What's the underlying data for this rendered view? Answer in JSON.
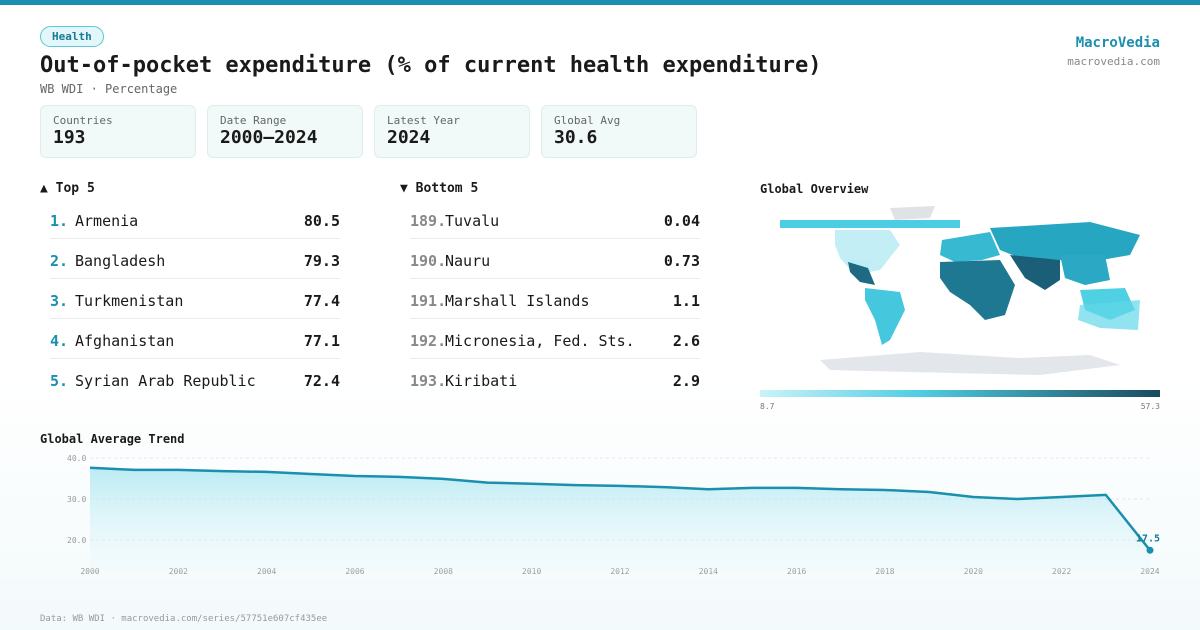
{
  "header": {
    "tag": "Health",
    "title": "Out-of-pocket expenditure (% of current health expenditure)",
    "subtitle": "WB WDI · Percentage",
    "brand": "MacroVedia",
    "site": "macrovedia.com"
  },
  "stats": [
    {
      "label": "Countries",
      "value": 193
    },
    {
      "label": "Date Range",
      "value": "2000–2024"
    },
    {
      "label": "Latest Year",
      "value": 2024
    },
    {
      "label": "Global Avg",
      "value": 30.6
    }
  ],
  "top": {
    "title": "▲ Top 5",
    "rows": [
      {
        "rank": "1.",
        "name": "Armenia",
        "value": 80.5
      },
      {
        "rank": "2.",
        "name": "Bangladesh",
        "value": 79.3
      },
      {
        "rank": "3.",
        "name": "Turkmenistan",
        "value": 77.4
      },
      {
        "rank": "4.",
        "name": "Afghanistan",
        "value": 77.1
      },
      {
        "rank": "5.",
        "name": "Syrian Arab Republic",
        "value": 72.4
      }
    ]
  },
  "bottom": {
    "title": "▼ Bottom 5",
    "rows": [
      {
        "rank": "189.",
        "name": "Tuvalu",
        "value": 0.04
      },
      {
        "rank": "190.",
        "name": "Nauru",
        "value": 0.73
      },
      {
        "rank": "191.",
        "name": "Marshall Islands",
        "value": 1.1
      },
      {
        "rank": "192.",
        "name": "Micronesia, Fed. Sts.",
        "value": 2.6
      },
      {
        "rank": "193.",
        "name": "Kiribati",
        "value": 2.9
      }
    ]
  },
  "map": {
    "title": "Global Overview",
    "scale_min": 8.7,
    "scale_max": 57.3
  },
  "chart_data": {
    "type": "line",
    "title": "Global Average Trend",
    "color": "#1a8fae",
    "x": [
      2000,
      2001,
      2002,
      2003,
      2004,
      2005,
      2006,
      2007,
      2008,
      2009,
      2010,
      2011,
      2012,
      2013,
      2014,
      2015,
      2016,
      2017,
      2018,
      2019,
      2020,
      2021,
      2022,
      2023,
      2024
    ],
    "values": [
      37.6,
      37.1,
      37.1,
      36.8,
      36.6,
      36.1,
      35.6,
      35.4,
      34.9,
      34.0,
      33.7,
      33.4,
      33.2,
      32.9,
      32.4,
      32.7,
      32.7,
      32.4,
      32.2,
      31.7,
      30.5,
      30.0,
      30.5,
      31.0,
      17.5
    ],
    "xlim": [
      2000,
      2024
    ],
    "xticks": [
      2000,
      2002,
      2004,
      2006,
      2008,
      2010,
      2012,
      2014,
      2016,
      2018,
      2020,
      2022,
      2024
    ],
    "ylim": [
      15,
      40
    ],
    "yticks": [
      {
        "value": 40,
        "label": "40.0"
      },
      {
        "value": 30,
        "label": "30.0"
      },
      {
        "value": 20,
        "label": "20.0"
      }
    ],
    "grid": true
  },
  "footer": "Data: WB WDI · macrovedia.com/series/57751e607cf435ee"
}
